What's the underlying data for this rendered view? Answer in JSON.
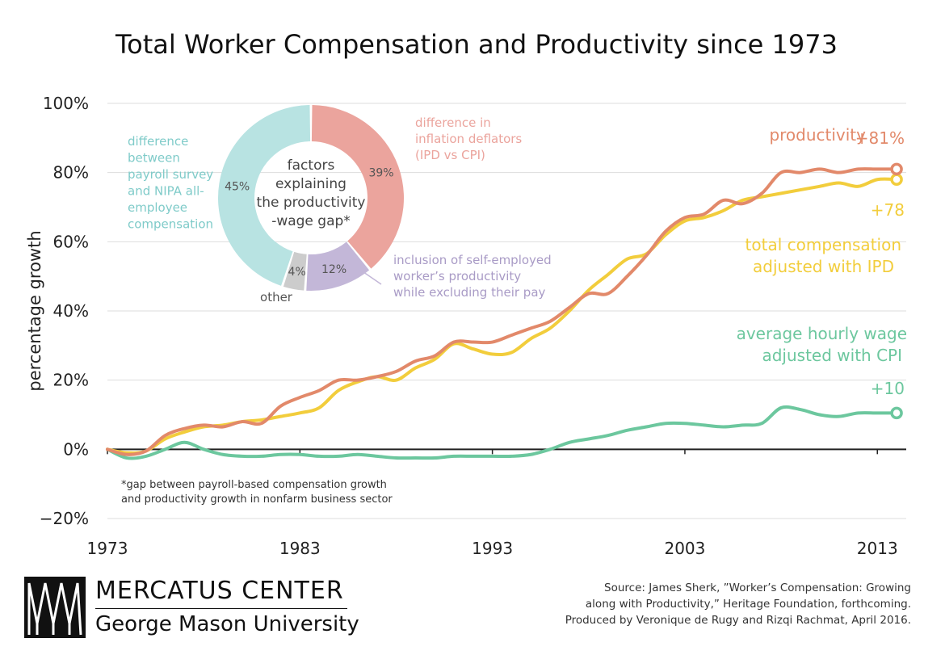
{
  "chart_data": {
    "type": "line",
    "title": "Total Worker Compensation and Productivity since 1973",
    "ylabel": "percentage growth",
    "xlabel": "",
    "xlim": [
      1973,
      2014.5
    ],
    "ylim": [
      -20,
      100
    ],
    "x_ticks": [
      1973,
      1983,
      1993,
      2003,
      2013
    ],
    "x_tick_labels": [
      "1973",
      "1983",
      "1993",
      "2003",
      "2013"
    ],
    "y_ticks": [
      -20,
      0,
      20,
      40,
      60,
      80,
      100
    ],
    "y_tick_labels": [
      "−20%",
      "0%",
      "20%",
      "40%",
      "60%",
      "80%",
      "100%"
    ],
    "series": [
      {
        "name": "productivity",
        "label_lines": [
          "productivity"
        ],
        "end_label": "+81%",
        "color": "#e2896a",
        "x": [
          1973,
          1974,
          1975,
          1976,
          1977,
          1978,
          1979,
          1980,
          1981,
          1982,
          1983,
          1984,
          1985,
          1986,
          1987,
          1988,
          1989,
          1990,
          1991,
          1992,
          1993,
          1994,
          1995,
          1996,
          1997,
          1998,
          1999,
          2000,
          2001,
          2002,
          2003,
          2004,
          2005,
          2006,
          2007,
          2008,
          2009,
          2010,
          2011,
          2012,
          2013,
          2014
        ],
        "values": [
          0,
          -1.5,
          -0.5,
          4,
          6,
          7,
          6.5,
          8,
          7.5,
          12.5,
          15,
          17,
          20,
          20,
          21,
          22.5,
          25.5,
          27,
          31,
          31,
          31,
          33,
          35,
          37,
          41,
          45,
          45,
          50,
          56,
          63,
          67,
          68,
          72,
          71,
          74,
          80,
          80,
          81,
          80,
          81,
          81,
          81
        ]
      },
      {
        "name": "total compensation adjusted with IPD",
        "label_lines": [
          "total compensation",
          "adjusted with IPD"
        ],
        "end_label": "+78",
        "color": "#f2cd3c",
        "x": [
          1973,
          1974,
          1975,
          1976,
          1977,
          1978,
          1979,
          1980,
          1981,
          1982,
          1983,
          1984,
          1985,
          1986,
          1987,
          1988,
          1989,
          1990,
          1991,
          1992,
          1993,
          1994,
          1995,
          1996,
          1997,
          1998,
          1999,
          2000,
          2001,
          2002,
          2003,
          2004,
          2005,
          2006,
          2007,
          2008,
          2009,
          2010,
          2011,
          2012,
          2013,
          2014
        ],
        "values": [
          0,
          -1,
          -0.5,
          3,
          5,
          6.5,
          7,
          8,
          8.5,
          9.5,
          10.5,
          12,
          17,
          19.5,
          21,
          20,
          23.5,
          26,
          30.5,
          29,
          27.5,
          28,
          32,
          35,
          40,
          46,
          50.5,
          55,
          56.5,
          62,
          66,
          67,
          69,
          72,
          73,
          74,
          75,
          76,
          77,
          76,
          78,
          78
        ]
      },
      {
        "name": "average hourly wage adjusted with CPI",
        "label_lines": [
          "average hourly wage",
          "adjusted with CPI"
        ],
        "end_label": "+10",
        "color": "#6cc79e",
        "x": [
          1973,
          1974,
          1975,
          1976,
          1977,
          1978,
          1979,
          1980,
          1981,
          1982,
          1983,
          1984,
          1985,
          1986,
          1987,
          1988,
          1989,
          1990,
          1991,
          1992,
          1993,
          1994,
          1995,
          1996,
          1997,
          1998,
          1999,
          2000,
          2001,
          2002,
          2003,
          2004,
          2005,
          2006,
          2007,
          2008,
          2009,
          2010,
          2011,
          2012,
          2013,
          2014
        ],
        "values": [
          0,
          -2.5,
          -2,
          0,
          2,
          0,
          -1.5,
          -2,
          -2,
          -1.5,
          -1.5,
          -2,
          -2,
          -1.5,
          -2,
          -2.5,
          -2.5,
          -2.5,
          -2,
          -2,
          -2,
          -2,
          -1.5,
          0,
          2,
          3,
          4,
          5.5,
          6.5,
          7.5,
          7.5,
          7,
          6.5,
          7,
          7.5,
          12,
          11.5,
          10,
          9.5,
          10.5,
          10.5,
          10.5
        ]
      }
    ],
    "inset_donut": {
      "type": "pie",
      "center_label_lines": [
        "factors",
        "explaining",
        "the productivity",
        "-wage gap*"
      ],
      "slices": [
        {
          "name": "difference in inflation deflators (IPD vs CPI)",
          "value": 39,
          "value_label": "39%",
          "color": "#eba49d",
          "label_lines": [
            "difference in",
            "inflation deflators",
            "(IPD vs CPI)"
          ]
        },
        {
          "name": "inclusion of self-employed worker's productivity while excluding their pay",
          "value": 12,
          "value_label": "12%",
          "color": "#c3b7d8",
          "label_lines": [
            "inclusion of self-employed",
            "worker’s productivity",
            "while excluding their pay"
          ]
        },
        {
          "name": "other",
          "value": 4,
          "value_label": "4%",
          "color": "#cccccc",
          "label_lines": [
            "other"
          ]
        },
        {
          "name": "difference between payroll survey and NIPA all-employee compensation",
          "value": 45,
          "value_label": "45%",
          "color": "#b8e3e2",
          "label_lines": [
            "difference",
            "between",
            "payroll survey",
            "and NIPA all-",
            "employee",
            "compensation"
          ]
        }
      ]
    },
    "footnote_lines": [
      "*gap between payroll-based compensation growth",
      "and productivity growth in nonfarm business sector"
    ]
  },
  "logo": {
    "name": "MERCATUS CENTER",
    "sub": "George Mason University"
  },
  "source_lines": [
    "Source: James Sherk, ”Worker’s Compensation: Growing",
    "along with Productivity,” Heritage Foundation, forthcoming.",
    "Produced by Veronique de Rugy and Rizqi Rachmat, April 2016."
  ]
}
